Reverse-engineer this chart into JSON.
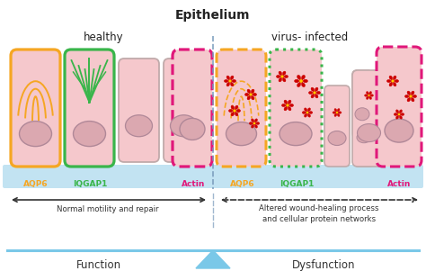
{
  "title": "Epithelium",
  "healthy_label": "healthy",
  "infected_label": "virus- infected",
  "bg_color": "#ffffff",
  "cell_fill": "#f5c8cc",
  "cell_fill2": "#f0d0d5",
  "cell_stroke": "#c0aaaa",
  "blue_band_color": "#b8dff0",
  "divider_color": "#7799bb",
  "function_label": "Function",
  "dysfunction_label": "Dysfunction",
  "normal_label": "Normal motility and repair",
  "altered_label1": "Altered wound-healing process",
  "altered_label2": "and cellular protein networks",
  "aqp6_color": "#f5a623",
  "iqgap1_color": "#39b54a",
  "actin_color": "#e0187a",
  "virus_color": "#cc0000",
  "virus_center": "#ffcc00",
  "arrow_color": "#333333",
  "triangle_color": "#7ac8e8",
  "beam_color": "#7ac8e8"
}
